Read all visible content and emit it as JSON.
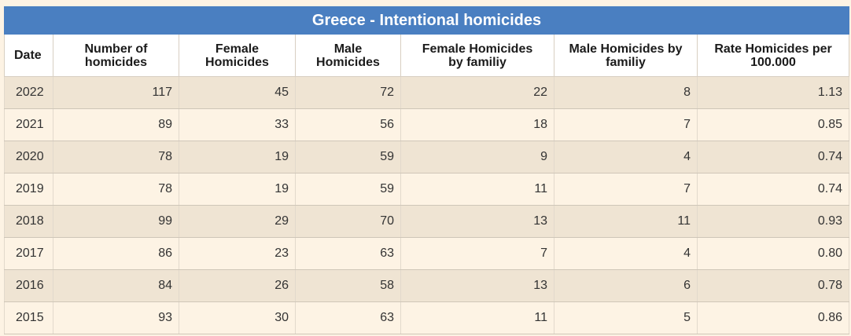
{
  "table": {
    "caption": "Greece - Intentional homicides",
    "headers": [
      [
        "Date"
      ],
      [
        "Number of",
        "homicides"
      ],
      [
        "Female",
        "Homicides"
      ],
      [
        "Male",
        "Homicides"
      ],
      [
        "Female Homicides",
        "by familiy"
      ],
      [
        "Male Homicides by",
        "familiy"
      ],
      [
        "Rate Homicides per",
        "100.000"
      ]
    ],
    "rows": [
      [
        "2022",
        "117",
        "45",
        "72",
        "22",
        "8",
        "1.13"
      ],
      [
        "2021",
        "89",
        "33",
        "56",
        "18",
        "7",
        "0.85"
      ],
      [
        "2020",
        "78",
        "19",
        "59",
        "9",
        "4",
        "0.74"
      ],
      [
        "2019",
        "78",
        "19",
        "59",
        "11",
        "7",
        "0.74"
      ],
      [
        "2018",
        "99",
        "29",
        "70",
        "13",
        "11",
        "0.93"
      ],
      [
        "2017",
        "86",
        "23",
        "63",
        "7",
        "4",
        "0.80"
      ],
      [
        "2016",
        "84",
        "26",
        "58",
        "13",
        "6",
        "0.78"
      ],
      [
        "2015",
        "93",
        "30",
        "63",
        "11",
        "5",
        "0.86"
      ]
    ]
  },
  "colors": {
    "caption_bg": "#4a7fc1",
    "row_odd": "#efe4d3",
    "row_even": "#fdf3e4",
    "header_bg": "#ffffff"
  }
}
